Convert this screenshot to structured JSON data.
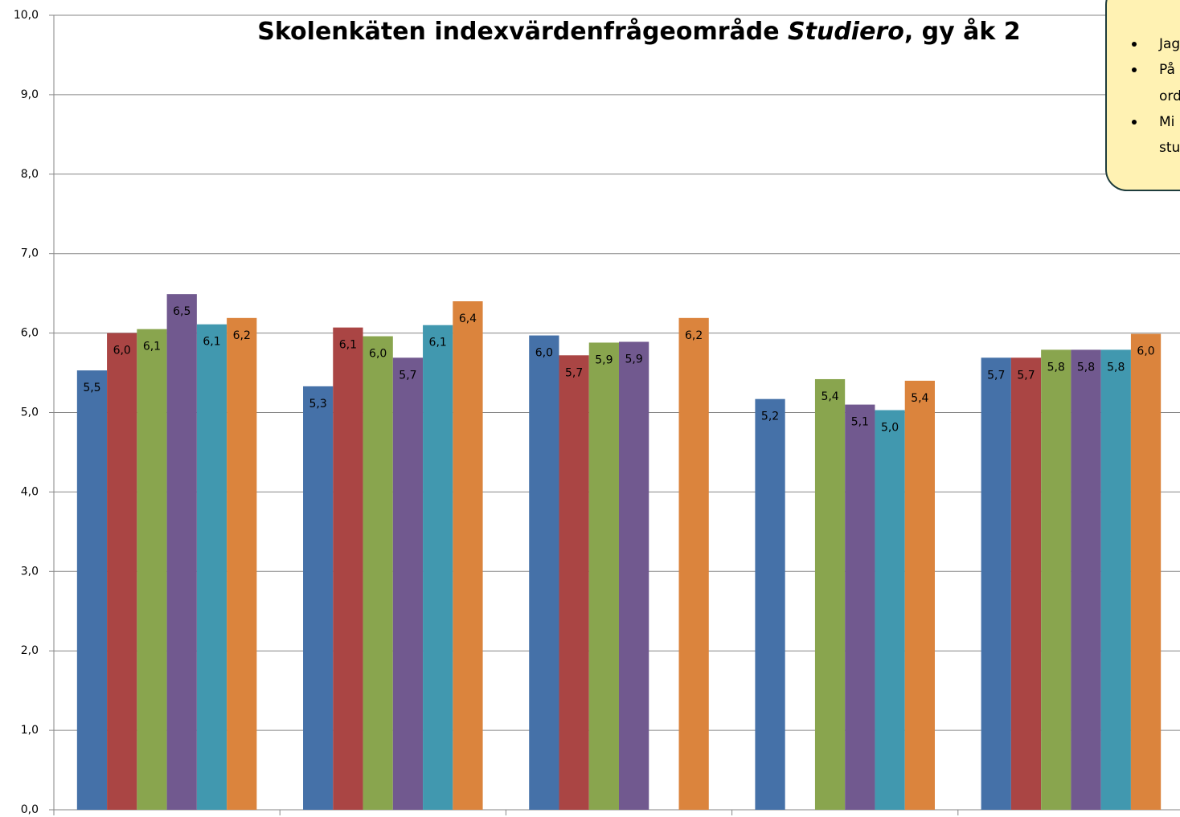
{
  "chart_data": {
    "type": "bar",
    "title": [
      "Skolenkäten indexvärdenfrågeområde ",
      "Studiero",
      ",  gy åk 2"
    ],
    "categories": [
      null,
      null,
      null,
      null,
      null
    ],
    "series": [
      {
        "color": "#4571a8",
        "values": [
          5.53,
          5.33,
          5.97,
          5.17,
          5.69
        ],
        "value_labels": [
          "5,5",
          "5,3",
          "6,0",
          "5,2",
          "5,7"
        ]
      },
      {
        "color": "#aa4544",
        "values": [
          6.0,
          6.07,
          5.72,
          null,
          5.69
        ],
        "value_labels": [
          "6,0",
          "6,1",
          "5,7",
          null,
          "5,7"
        ]
      },
      {
        "color": "#89a54e",
        "values": [
          6.05,
          5.96,
          5.88,
          5.42,
          5.79
        ],
        "value_labels": [
          "6,1",
          "6,0",
          "5,9",
          "5,4",
          "5,8"
        ]
      },
      {
        "color": "#71598f",
        "values": [
          6.49,
          5.69,
          5.89,
          5.1,
          5.79
        ],
        "value_labels": [
          "6,5",
          "5,7",
          "5,9",
          "5,1",
          "5,8"
        ]
      },
      {
        "color": "#4198af",
        "values": [
          6.11,
          6.1,
          null,
          5.03,
          5.79
        ],
        "value_labels": [
          "6,1",
          "6,1",
          null,
          "5,0",
          "5,8"
        ]
      },
      {
        "color": "#db843d",
        "values": [
          6.19,
          6.4,
          6.19,
          5.4,
          5.99
        ],
        "value_labels": [
          "6,2",
          "6,4",
          "6,2",
          "5,4",
          "6,0"
        ]
      }
    ],
    "ylim": [
      0,
      10
    ],
    "yticks": [
      {
        "value": 0,
        "label": "0,0"
      },
      {
        "value": 1,
        "label": "1,0"
      },
      {
        "value": 2,
        "label": "2,0"
      },
      {
        "value": 3,
        "label": "3,0"
      },
      {
        "value": 4,
        "label": "4,0"
      },
      {
        "value": 5,
        "label": "5,0"
      },
      {
        "value": 6,
        "label": "6,0"
      },
      {
        "value": 7,
        "label": "7,0"
      },
      {
        "value": 8,
        "label": "8,0"
      },
      {
        "value": 9,
        "label": "9,0"
      },
      {
        "value": 10,
        "label": "10,0"
      }
    ],
    "grid": true,
    "annotation": [
      "Jag",
      "På",
      "ord",
      "Mi",
      "stu"
    ]
  }
}
